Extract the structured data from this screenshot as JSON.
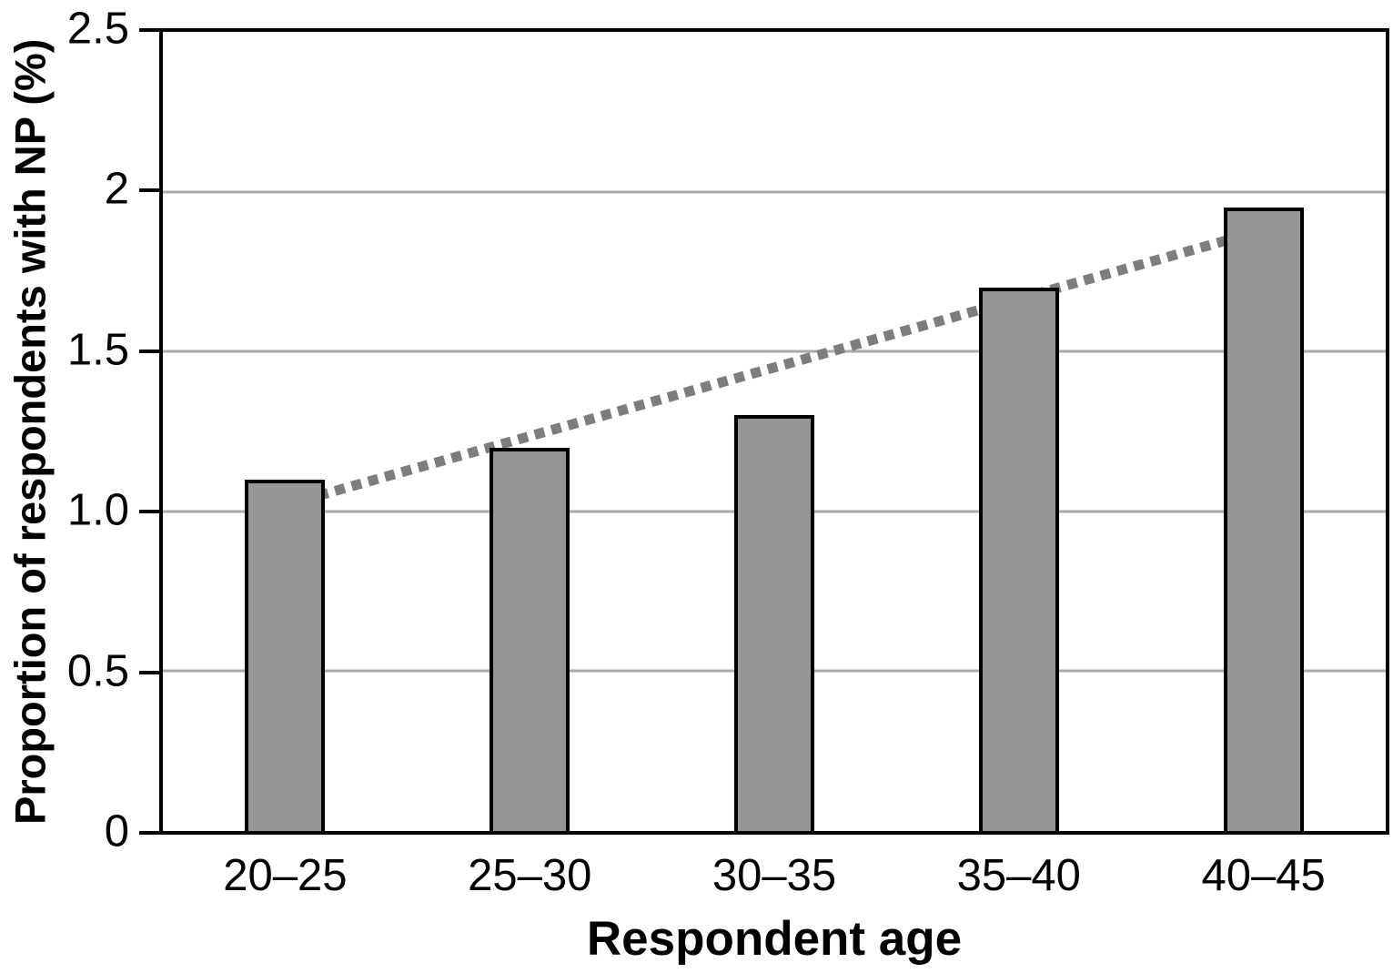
{
  "chart_data": {
    "type": "bar",
    "title": "",
    "categories": [
      "20–25",
      "25–30",
      "30–35",
      "35–40",
      "40–45"
    ],
    "values": [
      1.1,
      1.2,
      1.3,
      1.7,
      1.95
    ],
    "xlabel": "Respondent age",
    "ylabel": "Proportion of respondents with NP (%)",
    "ylim": [
      0,
      2.5
    ],
    "y_tick_labels": [
      "2.5",
      "2",
      "1.5",
      "1.0",
      "0.5",
      "0"
    ],
    "y_tick_values": [
      2.5,
      2.0,
      1.5,
      1.0,
      0.5,
      0
    ],
    "grid": "horizontal gray lines at each 0.5 step",
    "legend_position": "none",
    "trendline": {
      "style": "dotted",
      "description": "rising linear trend drawn behind the bars",
      "start": {
        "category": "20–25",
        "value": 1.02
      },
      "end": {
        "category": "40–45",
        "value": 1.88
      }
    },
    "colors": {
      "bar_fill": "#969696",
      "bar_border": "#000000",
      "gridline": "#a9a9a9",
      "axis_frame": "#000000",
      "trendline": "#7d7d7d"
    }
  }
}
